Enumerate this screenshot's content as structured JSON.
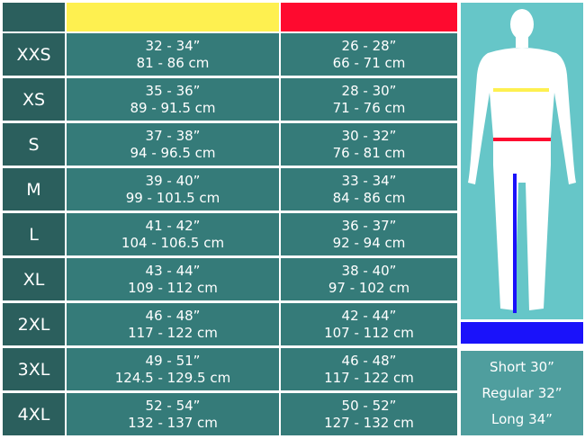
{
  "header": {
    "chest_color": "#fef050",
    "waist_color": "#fe0a2f"
  },
  "rows": [
    {
      "size": "XXS",
      "chest_in": "32 - 34”",
      "chest_cm": "81 - 86 cm",
      "waist_in": "26 - 28”",
      "waist_cm": "66 - 71 cm"
    },
    {
      "size": "XS",
      "chest_in": "35 - 36”",
      "chest_cm": "89 - 91.5 cm",
      "waist_in": "28 - 30”",
      "waist_cm": "71 - 76 cm"
    },
    {
      "size": "S",
      "chest_in": "37 - 38”",
      "chest_cm": "94 - 96.5 cm",
      "waist_in": "30 - 32”",
      "waist_cm": "76 - 81 cm"
    },
    {
      "size": "M",
      "chest_in": "39 - 40”",
      "chest_cm": "99 - 101.5 cm",
      "waist_in": "33 - 34”",
      "waist_cm": "84 - 86 cm"
    },
    {
      "size": "L",
      "chest_in": "41 - 42”",
      "chest_cm": "104 - 106.5 cm",
      "waist_in": "36 - 37”",
      "waist_cm": "92 - 94 cm"
    },
    {
      "size": "XL",
      "chest_in": "43 - 44”",
      "chest_cm": "109 - 112 cm",
      "waist_in": "38 - 40”",
      "waist_cm": "97 - 102 cm"
    },
    {
      "size": "2XL",
      "chest_in": "46 - 48”",
      "chest_cm": "117 - 122 cm",
      "waist_in": "42 - 44”",
      "waist_cm": "107 - 112 cm"
    },
    {
      "size": "3XL",
      "chest_in": "49 - 51”",
      "chest_cm": "124.5 - 129.5 cm",
      "waist_in": "46 - 48”",
      "waist_cm": "117 - 122 cm"
    },
    {
      "size": "4XL",
      "chest_in": "52 - 54”",
      "chest_cm": "132 - 137 cm",
      "waist_in": "50 - 52”",
      "waist_cm": "127 - 132 cm"
    }
  ],
  "inseam": {
    "color": "#1a12fa",
    "lengths": [
      "Short 30”",
      "Regular 32”",
      "Long 34”"
    ]
  }
}
